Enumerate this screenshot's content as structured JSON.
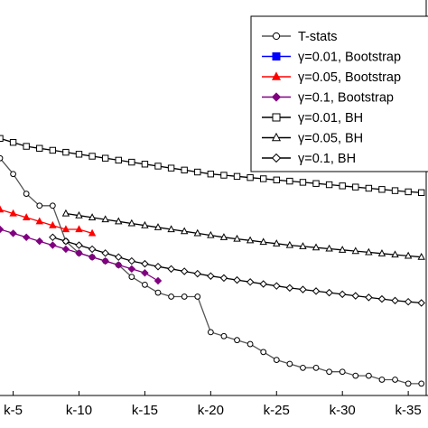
{
  "chart_data": {
    "type": "line",
    "title": "",
    "xlabel": "",
    "ylabel": "",
    "grid": false,
    "legend_position": "top-right",
    "xlim": [
      4,
      36.5
    ],
    "ylim": [
      0,
      1
    ],
    "x_ticks": [
      5,
      10,
      15,
      20,
      25,
      30,
      35
    ],
    "x_tick_labels": [
      "k-5",
      "k-10",
      "k-15",
      "k-20",
      "k-25",
      "k-30",
      "k-35"
    ],
    "series": [
      {
        "name": "T-stats",
        "color": "#000000",
        "marker": "circle",
        "marker_fill": "none",
        "line_color": "#555555",
        "x": [
          4,
          5,
          6,
          7,
          8,
          9,
          10,
          11,
          12,
          13,
          14,
          15,
          16,
          17,
          18,
          19,
          20,
          21,
          22,
          23,
          24,
          25,
          26,
          27,
          28,
          29,
          30,
          31,
          32,
          33,
          34,
          35,
          36
        ],
        "y": [
          0.6,
          0.56,
          0.51,
          0.48,
          0.48,
          0.39,
          0.36,
          0.35,
          0.34,
          0.33,
          0.3,
          0.28,
          0.26,
          0.25,
          0.25,
          0.25,
          0.16,
          0.15,
          0.14,
          0.13,
          0.11,
          0.09,
          0.08,
          0.07,
          0.07,
          0.06,
          0.06,
          0.05,
          0.05,
          0.04,
          0.04,
          0.03,
          0.03
        ]
      },
      {
        "name": "γ=0.01, Bootstrap",
        "color": "#0000ff",
        "marker": "square",
        "marker_fill": "filled",
        "line_color": "#0000ff",
        "x": [],
        "y": []
      },
      {
        "name": "γ=0.05, Bootstrap",
        "color": "#ff0000",
        "marker": "triangle",
        "marker_fill": "filled",
        "line_color": "#ff0000",
        "x": [
          4,
          5,
          6,
          7,
          8,
          9,
          10,
          11
        ],
        "y": [
          0.47,
          0.46,
          0.45,
          0.44,
          0.43,
          0.42,
          0.42,
          0.41
        ]
      },
      {
        "name": "γ=0.1, Bootstrap",
        "color": "#800080",
        "marker": "diamond",
        "marker_fill": "filled",
        "line_color": "#800080",
        "x": [
          4,
          5,
          6,
          7,
          8,
          9,
          10,
          11,
          12,
          13,
          14,
          15,
          16
        ],
        "y": [
          0.42,
          0.41,
          0.4,
          0.39,
          0.38,
          0.37,
          0.36,
          0.35,
          0.34,
          0.33,
          0.32,
          0.31,
          0.29
        ]
      },
      {
        "name": "γ=0.01, BH",
        "color": "#000000",
        "marker": "square",
        "marker_fill": "none",
        "line_color": "#000000",
        "x": [
          4,
          5,
          6,
          7,
          8,
          9,
          10,
          11,
          12,
          13,
          14,
          15,
          16,
          17,
          18,
          19,
          20,
          21,
          22,
          23,
          24,
          25,
          26,
          27,
          28,
          29,
          30,
          31,
          32,
          33,
          34,
          35,
          36
        ],
        "y": [
          0.65,
          0.64,
          0.63,
          0.625,
          0.62,
          0.615,
          0.61,
          0.605,
          0.6,
          0.595,
          0.59,
          0.585,
          0.58,
          0.575,
          0.57,
          0.565,
          0.56,
          0.557,
          0.554,
          0.551,
          0.548,
          0.545,
          0.542,
          0.539,
          0.536,
          0.533,
          0.53,
          0.527,
          0.524,
          0.521,
          0.518,
          0.515,
          0.513
        ]
      },
      {
        "name": "γ=0.05, BH",
        "color": "#000000",
        "marker": "triangle",
        "marker_fill": "none",
        "line_color": "#000000",
        "x": [
          9,
          10,
          11,
          12,
          13,
          14,
          15,
          16,
          17,
          18,
          19,
          20,
          21,
          22,
          23,
          24,
          25,
          26,
          27,
          28,
          29,
          30,
          31,
          32,
          33,
          34,
          35,
          36
        ],
        "y": [
          0.46,
          0.455,
          0.45,
          0.445,
          0.44,
          0.435,
          0.43,
          0.425,
          0.42,
          0.415,
          0.41,
          0.405,
          0.4,
          0.396,
          0.392,
          0.388,
          0.384,
          0.38,
          0.377,
          0.374,
          0.371,
          0.368,
          0.365,
          0.362,
          0.359,
          0.356,
          0.353,
          0.35
        ]
      },
      {
        "name": "γ=0.1, BH",
        "color": "#000000",
        "marker": "diamond",
        "marker_fill": "none",
        "line_color": "#000000",
        "x": [
          8,
          9,
          10,
          11,
          12,
          13,
          14,
          15,
          16,
          17,
          18,
          19,
          20,
          21,
          22,
          23,
          24,
          25,
          26,
          27,
          28,
          29,
          30,
          31,
          32,
          33,
          34,
          35,
          36
        ],
        "y": [
          0.4,
          0.39,
          0.38,
          0.37,
          0.36,
          0.35,
          0.34,
          0.333,
          0.326,
          0.32,
          0.314,
          0.308,
          0.302,
          0.297,
          0.292,
          0.287,
          0.282,
          0.277,
          0.272,
          0.268,
          0.264,
          0.26,
          0.256,
          0.252,
          0.248,
          0.244,
          0.24,
          0.237,
          0.234
        ]
      }
    ]
  }
}
